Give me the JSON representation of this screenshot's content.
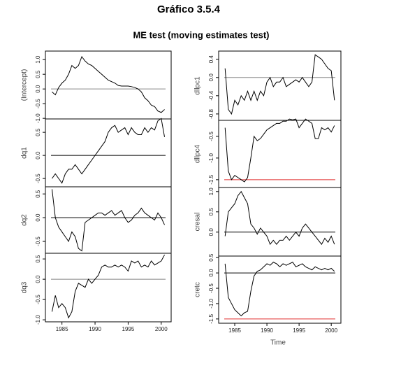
{
  "chart_data": {
    "type": "line",
    "title": "Gráfico 3.5.4",
    "subtitle": "ME test (moving estimates test)",
    "xlabel": "Time",
    "line_color": "#000000",
    "x": [
      1983.5,
      1984,
      1984.5,
      1985,
      1985.5,
      1986,
      1986.5,
      1987,
      1987.5,
      1988,
      1988.5,
      1989,
      1989.5,
      1990,
      1990.5,
      1991,
      1991.5,
      1992,
      1992.5,
      1993,
      1993.5,
      1994,
      1994.5,
      1995,
      1995.5,
      1996,
      1996.5,
      1997,
      1997.5,
      1998,
      1998.5,
      1999,
      1999.5,
      2000,
      2000.5
    ],
    "xlim": [
      1982.5,
      2001.5
    ],
    "xticks": [
      1985,
      1990,
      1995,
      2000
    ],
    "panels": [
      {
        "ylabel": "(Intercept)",
        "ylim": [
          -1.02,
          1.29
        ],
        "yticks": [
          {
            "value": -1,
            "label": "-1.0"
          },
          -0.5,
          {
            "value": 0,
            "label": "0.0"
          },
          0.5,
          {
            "value": 1,
            "label": "1.0"
          }
        ],
        "reference_lines": [
          {
            "value": 0,
            "color": "#888888"
          }
        ],
        "values": [
          -0.1,
          -0.2,
          0.05,
          0.2,
          0.3,
          0.5,
          0.8,
          0.7,
          0.8,
          1.1,
          0.95,
          0.85,
          0.8,
          0.7,
          0.6,
          0.5,
          0.4,
          0.3,
          0.25,
          0.2,
          0.12,
          0.1,
          0.1,
          0.1,
          0.08,
          0.05,
          0,
          -0.1,
          -0.3,
          -0.4,
          -0.55,
          -0.6,
          -0.75,
          -0.8,
          -0.7
        ]
      },
      {
        "ylabel": "dq1",
        "ylim": [
          -0.68,
          0.79
        ],
        "yticks": [
          -0.5,
          {
            "value": 0,
            "label": "0.0"
          },
          0.5
        ],
        "reference_lines": [
          {
            "value": 0,
            "color": "#000000"
          }
        ],
        "values": [
          -0.5,
          -0.4,
          -0.5,
          -0.6,
          -0.4,
          -0.3,
          -0.3,
          -0.2,
          -0.3,
          -0.4,
          -0.3,
          -0.2,
          -0.1,
          0,
          0.1,
          0.2,
          0.3,
          0.5,
          0.6,
          0.65,
          0.5,
          0.55,
          0.6,
          0.45,
          0.6,
          0.5,
          0.45,
          0.45,
          0.6,
          0.5,
          0.6,
          0.55,
          0.75,
          0.8,
          0.4
        ]
      },
      {
        "ylabel": "dq2",
        "ylim": [
          -0.75,
          0.65
        ],
        "yticks": [
          -0.5,
          {
            "value": 0,
            "label": "0.0"
          },
          0.5
        ],
        "reference_lines": [
          {
            "value": 0,
            "color": "#000000"
          }
        ],
        "values": [
          0.6,
          0,
          -0.2,
          -0.3,
          -0.4,
          -0.5,
          -0.3,
          -0.4,
          -0.65,
          -0.7,
          -0.1,
          -0.05,
          0,
          0.05,
          0.1,
          0.1,
          0.05,
          0.1,
          0.15,
          0.05,
          0.1,
          0.15,
          0,
          -0.1,
          -0.05,
          0.05,
          0.1,
          0.2,
          0.1,
          0.05,
          0,
          -0.05,
          0.1,
          0,
          -0.15
        ]
      },
      {
        "ylabel": "dq3",
        "ylim": [
          -1.05,
          0.64
        ],
        "yticks": [
          {
            "value": -1,
            "label": "-1.0"
          },
          -0.5,
          {
            "value": 0,
            "label": "0.0"
          },
          0.5
        ],
        "reference_lines": [
          {
            "value": 0,
            "color": "#888888"
          }
        ],
        "values": [
          -0.8,
          -0.4,
          -0.7,
          -0.6,
          -0.7,
          -0.95,
          -0.8,
          -0.3,
          -0.1,
          -0.15,
          -0.2,
          0,
          -0.1,
          0,
          0.1,
          0.3,
          0.35,
          0.3,
          0.3,
          0.35,
          0.3,
          0.35,
          0.3,
          0.2,
          0.45,
          0.4,
          0.45,
          0.3,
          0.35,
          0.3,
          0.45,
          0.35,
          0.4,
          0.45,
          0.6
        ]
      },
      {
        "ylabel": "dllpc1",
        "ylim": [
          -0.94,
          0.58
        ],
        "yticks": [
          -0.8,
          -0.4,
          {
            "value": 0,
            "label": "0.0"
          },
          0.4
        ],
        "reference_lines": [
          {
            "value": 0,
            "color": "#888888"
          }
        ],
        "values": [
          0.2,
          -0.7,
          -0.8,
          -0.5,
          -0.6,
          -0.4,
          -0.5,
          -0.3,
          -0.5,
          -0.3,
          -0.5,
          -0.3,
          -0.4,
          -0.1,
          0,
          -0.2,
          -0.1,
          -0.1,
          0,
          -0.2,
          -0.15,
          -0.1,
          -0.05,
          -0.1,
          0,
          -0.1,
          -0.2,
          -0.1,
          0.5,
          0.45,
          0.4,
          0.3,
          0.2,
          0.15,
          -0.5
        ]
      },
      {
        "ylabel": "dllpc4",
        "ylim": [
          -1.68,
          -0.13
        ],
        "yticks": [
          -1.5,
          {
            "value": -1,
            "label": "-1.0"
          },
          -0.5
        ],
        "reference_lines": [
          {
            "value": -1.5,
            "color": "#e03030"
          }
        ],
        "values": [
          -0.3,
          -1.3,
          -1.5,
          -1.4,
          -1.45,
          -1.5,
          -1.55,
          -1.45,
          -1.0,
          -0.5,
          -0.6,
          -0.55,
          -0.45,
          -0.35,
          -0.3,
          -0.25,
          -0.2,
          -0.2,
          -0.15,
          -0.15,
          -0.1,
          -0.12,
          -0.1,
          -0.3,
          -0.2,
          -0.1,
          -0.15,
          -0.2,
          -0.55,
          -0.55,
          -0.3,
          -0.35,
          -0.3,
          -0.4,
          -0.25
        ]
      },
      {
        "ylabel": "cresal",
        "ylim": [
          -0.59,
          1.1
        ],
        "yticks": [
          {
            "value": 0,
            "label": "0.0"
          },
          0.5,
          {
            "value": 1,
            "label": "1.0"
          }
        ],
        "reference_lines": [
          {
            "value": 0,
            "color": "#000000"
          }
        ],
        "values": [
          -0.1,
          0.5,
          0.6,
          0.7,
          0.9,
          1.0,
          0.85,
          0.7,
          0.2,
          0.1,
          -0.05,
          0.1,
          0,
          -0.1,
          -0.3,
          -0.2,
          -0.3,
          -0.2,
          -0.2,
          -0.1,
          -0.2,
          -0.1,
          0,
          -0.1,
          0.1,
          0.2,
          0.1,
          0,
          -0.1,
          -0.2,
          -0.3,
          -0.15,
          -0.25,
          -0.1,
          -0.3
        ]
      },
      {
        "ylabel": "cretc",
        "ylim": [
          -1.64,
          0.55
        ],
        "yticks": [
          -1.5,
          {
            "value": -1,
            "label": "-1.0"
          },
          -0.5,
          {
            "value": 0,
            "label": "0.0"
          },
          0.5
        ],
        "reference_lines": [
          {
            "value": 0,
            "color": "#000000"
          },
          {
            "value": -1.5,
            "color": "#e03030"
          }
        ],
        "values": [
          0.3,
          -0.8,
          -1.0,
          -1.2,
          -1.3,
          -1.4,
          -1.3,
          -1.25,
          -0.6,
          -0.1,
          0.05,
          0.1,
          0.2,
          0.3,
          0.25,
          0.35,
          0.3,
          0.2,
          0.3,
          0.25,
          0.3,
          0.35,
          0.2,
          0.25,
          0.3,
          0.2,
          0.15,
          0.1,
          0.2,
          0.15,
          0.1,
          0.15,
          0.1,
          0.15,
          0.05
        ]
      }
    ]
  }
}
